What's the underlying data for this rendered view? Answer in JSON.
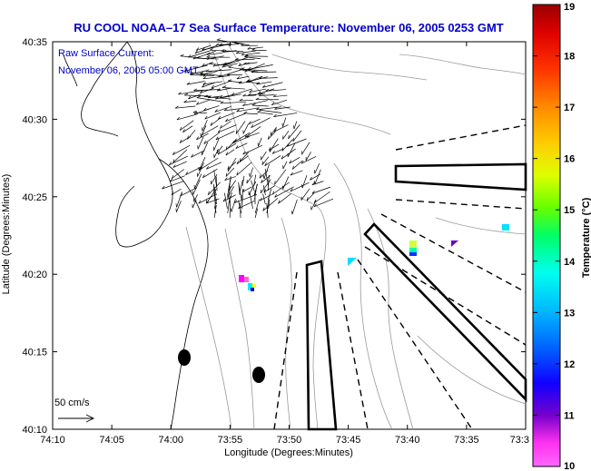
{
  "title": "RU COOL  NOAA–17  Sea Surface Temperature:  November 06, 2005 0253 GMT",
  "legend": {
    "current_label": "Raw Surface Current:",
    "current_time": "November 06, 2005 05:00 GMT",
    "scale_label": "50 cm/s"
  },
  "axes": {
    "xlabel": "Longitude (Degrees:Minutes)",
    "ylabel": "Latitude (Degrees:Minutes)",
    "x_ticks": [
      "74:10",
      "74:05",
      "74:00",
      "73:55",
      "73:50",
      "73:45",
      "73:40",
      "73:35",
      "73:3"
    ],
    "y_ticks": [
      "40:35",
      "40:30",
      "40:25",
      "40:20",
      "40:15",
      "40:10"
    ]
  },
  "colorbar": {
    "label": "Temperature (°C)",
    "ticks": [
      "19",
      "18",
      "17",
      "16",
      "15",
      "14",
      "13",
      "12",
      "11",
      "10"
    ],
    "min": 10,
    "max": 19
  }
}
